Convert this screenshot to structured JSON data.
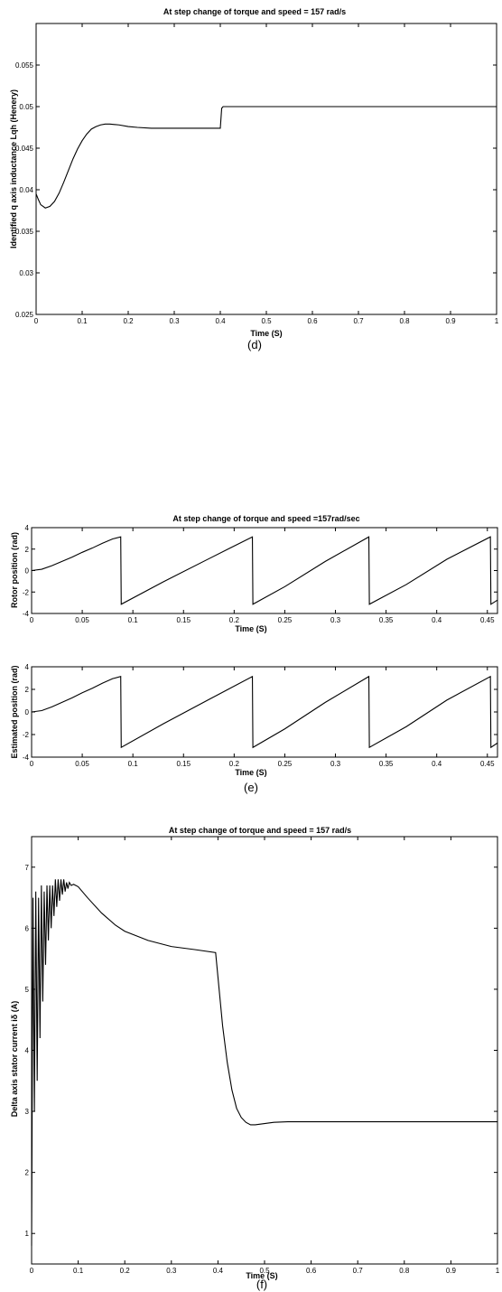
{
  "chart_data": [
    {
      "id": "d",
      "type": "line",
      "title": "At step change of torque and speed = 157 rad/s",
      "xlabel": "Time (S)",
      "ylabel": "Identified q axis inductance Lqh (Henery)",
      "caption": "(d)",
      "xlim": [
        0,
        1
      ],
      "ylim": [
        0.025,
        0.06
      ],
      "xticks": [
        0,
        0.1,
        0.2,
        0.3,
        0.4,
        0.5,
        0.6,
        0.7,
        0.8,
        0.9,
        1
      ],
      "yticks": [
        0.025,
        0.03,
        0.035,
        0.04,
        0.045,
        0.05,
        0.055
      ],
      "series": [
        {
          "x": [
            0,
            0.005,
            0.01,
            0.02,
            0.03,
            0.04,
            0.05,
            0.06,
            0.07,
            0.08,
            0.09,
            0.1,
            0.11,
            0.12,
            0.13,
            0.14,
            0.15,
            0.16,
            0.18,
            0.2,
            0.22,
            0.25,
            0.28,
            0.3,
            0.35,
            0.4,
            0.403,
            0.406,
            0.5,
            0.6,
            0.7,
            0.8,
            0.9,
            1.0
          ],
          "y": [
            0.0395,
            0.0388,
            0.0382,
            0.0378,
            0.038,
            0.0386,
            0.0396,
            0.0409,
            0.0423,
            0.0437,
            0.0449,
            0.0459,
            0.0467,
            0.0473,
            0.0476,
            0.0478,
            0.0479,
            0.0479,
            0.0478,
            0.0476,
            0.0475,
            0.0474,
            0.0474,
            0.0474,
            0.0474,
            0.0474,
            0.0498,
            0.05,
            0.05,
            0.05,
            0.05,
            0.05,
            0.05,
            0.05
          ]
        }
      ]
    },
    {
      "id": "e1",
      "type": "line",
      "title": "At step change of torque and speed =157rad/sec",
      "xlabel": "Time (S)",
      "ylabel": "Rotor position (rad)",
      "xlim": [
        0,
        0.46
      ],
      "ylim": [
        -4,
        4
      ],
      "xticks": [
        0,
        0.05,
        0.1,
        0.15,
        0.2,
        0.25,
        0.3,
        0.35,
        0.4,
        0.45
      ],
      "yticks": [
        -4,
        -2,
        0,
        2,
        4
      ],
      "ytickLabels": [
        "-4",
        "-2",
        "0",
        "2",
        "4"
      ],
      "series": [
        {
          "x": [
            0,
            0.01,
            0.02,
            0.03,
            0.04,
            0.05,
            0.06,
            0.07,
            0.08,
            0.088,
            0.0885,
            0.13,
            0.175,
            0.218,
            0.2185,
            0.25,
            0.29,
            0.333,
            0.3335,
            0.37,
            0.41,
            0.453,
            0.4535,
            0.46
          ],
          "y": [
            0,
            0.12,
            0.45,
            0.85,
            1.25,
            1.7,
            2.1,
            2.55,
            2.95,
            3.14,
            -3.14,
            -1.05,
            1.1,
            3.14,
            -3.14,
            -1.5,
            0.85,
            3.14,
            -3.14,
            -1.3,
            1.05,
            3.14,
            -3.14,
            -2.75
          ]
        }
      ]
    },
    {
      "id": "e2",
      "type": "line",
      "title": "",
      "xlabel": "Time (S)",
      "ylabel": "Estimated position (rad)",
      "caption": "(e)",
      "xlim": [
        0,
        0.46
      ],
      "ylim": [
        -4,
        4
      ],
      "xticks": [
        0,
        0.05,
        0.1,
        0.15,
        0.2,
        0.25,
        0.3,
        0.35,
        0.4,
        0.45
      ],
      "yticks": [
        -4,
        -2,
        0,
        2,
        4
      ],
      "ytickLabels": [
        "-4",
        "-2",
        "0",
        "2",
        "4"
      ],
      "series": [
        {
          "x": [
            0,
            0.01,
            0.02,
            0.03,
            0.04,
            0.05,
            0.06,
            0.07,
            0.08,
            0.088,
            0.0885,
            0.13,
            0.175,
            0.218,
            0.2185,
            0.25,
            0.29,
            0.333,
            0.3335,
            0.37,
            0.41,
            0.453,
            0.4535,
            0.46
          ],
          "y": [
            0,
            0.12,
            0.45,
            0.85,
            1.25,
            1.7,
            2.1,
            2.55,
            2.95,
            3.14,
            -3.14,
            -1.05,
            1.1,
            3.14,
            -3.14,
            -1.5,
            0.85,
            3.14,
            -3.14,
            -1.3,
            1.05,
            3.14,
            -3.14,
            -2.75
          ]
        }
      ]
    },
    {
      "id": "f",
      "type": "line",
      "title": "At step change of torque and speed = 157 rad/s",
      "xlabel": "Time (S)",
      "ylabel": "Delta axis stator current iδ (A)",
      "caption": "(f)",
      "xlim": [
        0,
        1
      ],
      "ylim": [
        0.5,
        7.5
      ],
      "xticks": [
        0,
        0.1,
        0.2,
        0.3,
        0.4,
        0.5,
        0.6,
        0.7,
        0.8,
        0.9,
        1
      ],
      "yticks": [
        1,
        2,
        3,
        4,
        5,
        6,
        7
      ],
      "series": [
        {
          "x": [
            0,
            0.003,
            0.006,
            0.009,
            0.012,
            0.015,
            0.018,
            0.021,
            0.024,
            0.027,
            0.03,
            0.033,
            0.036,
            0.039,
            0.042,
            0.045,
            0.048,
            0.051,
            0.054,
            0.057,
            0.06,
            0.063,
            0.066,
            0.069,
            0.072,
            0.075,
            0.078,
            0.081,
            0.085,
            0.09,
            0.1,
            0.12,
            0.15,
            0.18,
            0.2,
            0.25,
            0.3,
            0.35,
            0.395,
            0.4,
            0.41,
            0.42,
            0.43,
            0.44,
            0.45,
            0.46,
            0.47,
            0.48,
            0.5,
            0.52,
            0.55,
            0.6,
            0.7,
            0.8,
            0.9,
            1.0
          ],
          "y": [
            0.8,
            6.5,
            3.0,
            6.6,
            3.5,
            6.5,
            4.2,
            6.7,
            4.8,
            6.6,
            5.4,
            6.7,
            5.8,
            6.7,
            6.0,
            6.7,
            6.2,
            6.8,
            6.35,
            6.8,
            6.45,
            6.8,
            6.55,
            6.8,
            6.6,
            6.75,
            6.65,
            6.75,
            6.7,
            6.72,
            6.68,
            6.5,
            6.25,
            6.05,
            5.95,
            5.8,
            5.7,
            5.65,
            5.6,
            5.2,
            4.4,
            3.8,
            3.35,
            3.05,
            2.9,
            2.82,
            2.78,
            2.78,
            2.8,
            2.82,
            2.83,
            2.83,
            2.83,
            2.83,
            2.83,
            2.83
          ]
        }
      ]
    }
  ]
}
